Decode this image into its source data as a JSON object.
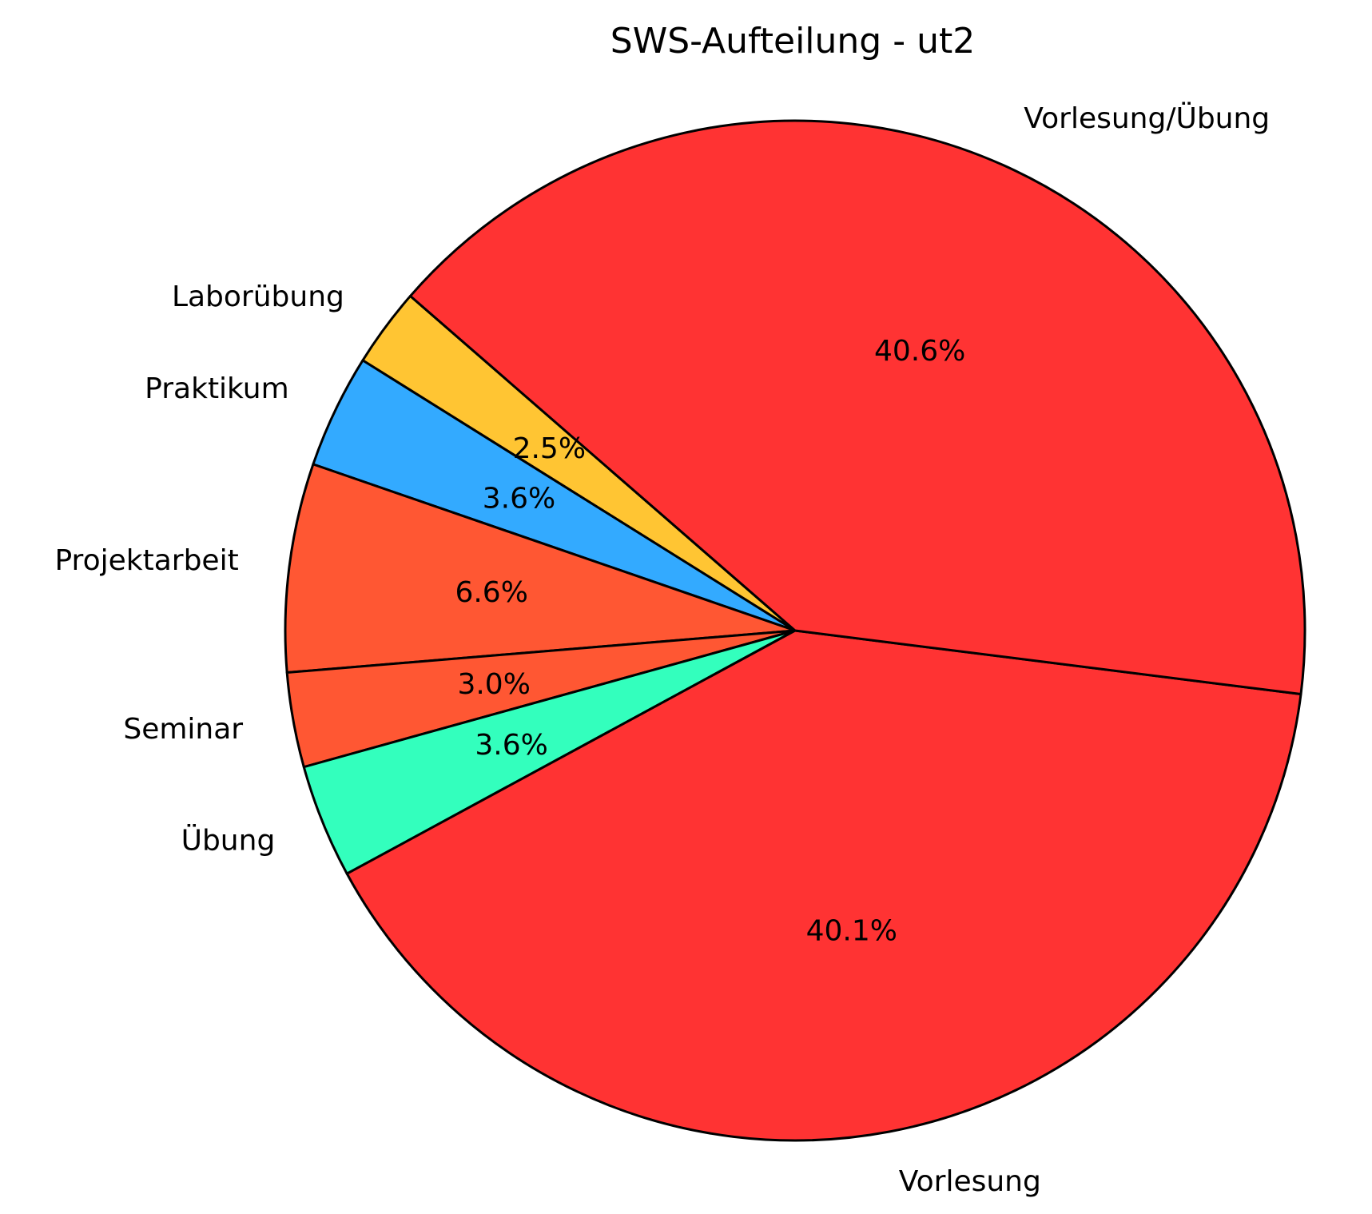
{
  "chart_data": {
    "type": "pie",
    "title": "SWS-Aufteilung - ut2",
    "start_angle_deg": 139,
    "direction": "counterclockwise",
    "slices": [
      {
        "label": "Laborübung",
        "value": 2.5,
        "pct_label": "2.5%",
        "color": "#ffc533"
      },
      {
        "label": "Praktikum",
        "value": 3.6,
        "pct_label": "3.6%",
        "color": "#33aaff"
      },
      {
        "label": "Projektarbeit",
        "value": 6.6,
        "pct_label": "6.6%",
        "color": "#ff5733"
      },
      {
        "label": "Seminar",
        "value": 3.0,
        "pct_label": "3.0%",
        "color": "#ff5733"
      },
      {
        "label": "Übung",
        "value": 3.6,
        "pct_label": "3.6%",
        "color": "#33ffbd"
      },
      {
        "label": "Vorlesung",
        "value": 40.1,
        "pct_label": "40.1%",
        "color": "#ff3333"
      },
      {
        "label": "Vorlesung/Übung",
        "value": 40.6,
        "pct_label": "40.6%",
        "color": "#ff3333"
      }
    ]
  }
}
